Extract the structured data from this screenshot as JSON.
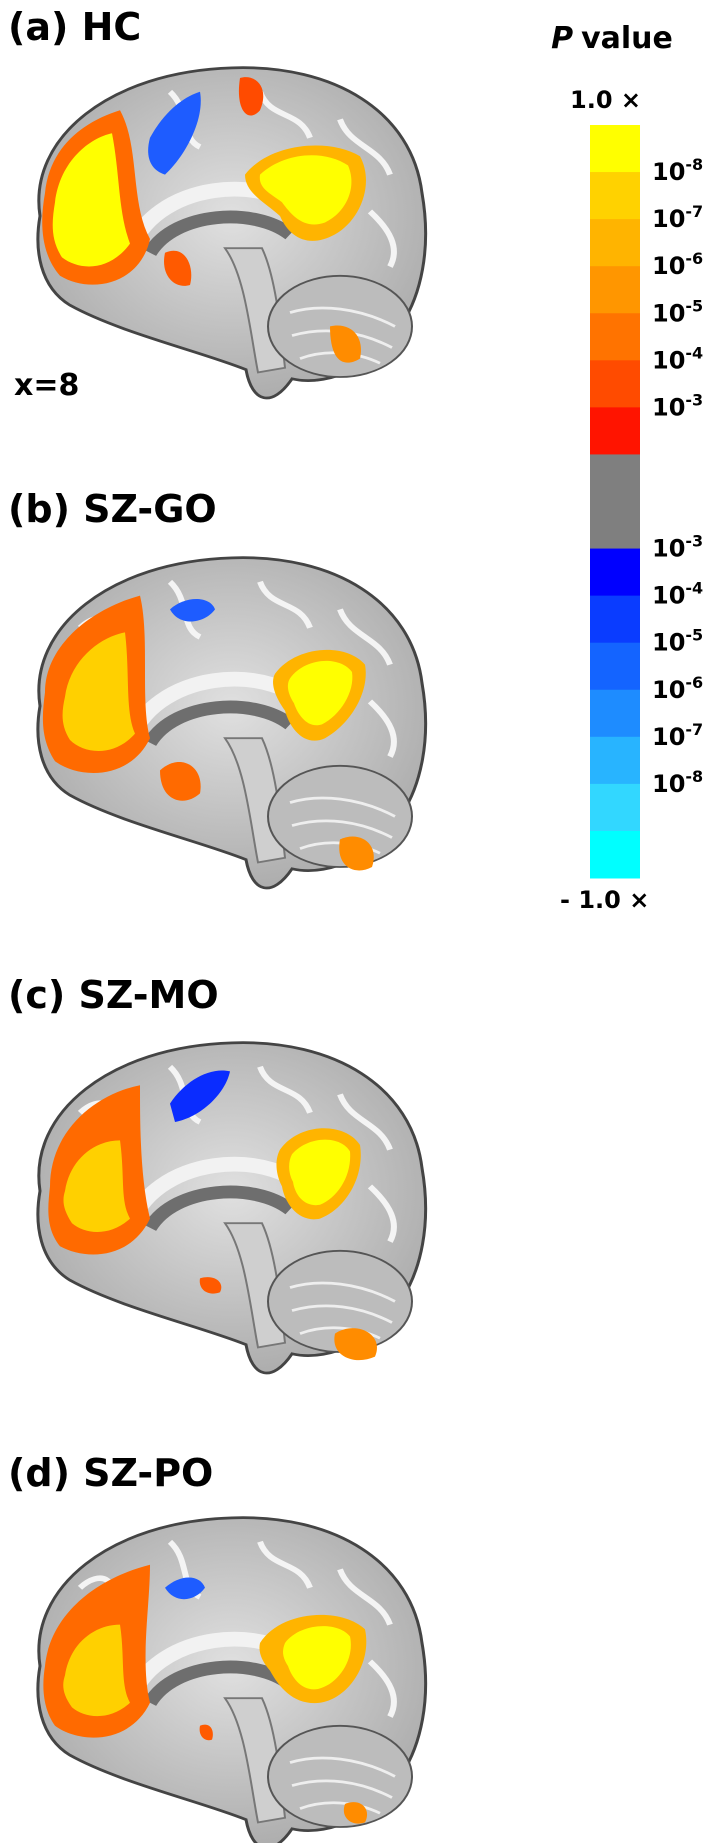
{
  "panels": [
    {
      "label": "(a) HC",
      "coordinate": "x=8"
    },
    {
      "label": "(b) SZ-GO"
    },
    {
      "label": "(c) SZ-MO"
    },
    {
      "label": "(d) SZ-PO"
    }
  ],
  "colorbar": {
    "title_symbol": "P",
    "title_text": "value",
    "top_label": "1.0 ×",
    "bottom_label": "- 1.0 ×",
    "colors": [
      "#ffff00",
      "#ffd200",
      "#ffb400",
      "#ff9600",
      "#ff7300",
      "#ff4b00",
      "#ff1400",
      "#7f7f7f",
      "#7f7f7f",
      "#0000ff",
      "#0a3cff",
      "#1464ff",
      "#1e8cff",
      "#28b4ff",
      "#32d7ff",
      "#00ffff"
    ],
    "labels": [
      {
        "base": "10",
        "exp": "-8"
      },
      {
        "base": "10",
        "exp": "-7"
      },
      {
        "base": "10",
        "exp": "-6"
      },
      {
        "base": "10",
        "exp": "-5"
      },
      {
        "base": "10",
        "exp": "-4"
      },
      {
        "base": "10",
        "exp": "-3"
      },
      {
        "base": "10",
        "exp": "-3"
      },
      {
        "base": "10",
        "exp": "-4"
      },
      {
        "base": "10",
        "exp": "-5"
      },
      {
        "base": "10",
        "exp": "-6"
      },
      {
        "base": "10",
        "exp": "-7"
      },
      {
        "base": "10",
        "exp": "-8"
      }
    ]
  }
}
